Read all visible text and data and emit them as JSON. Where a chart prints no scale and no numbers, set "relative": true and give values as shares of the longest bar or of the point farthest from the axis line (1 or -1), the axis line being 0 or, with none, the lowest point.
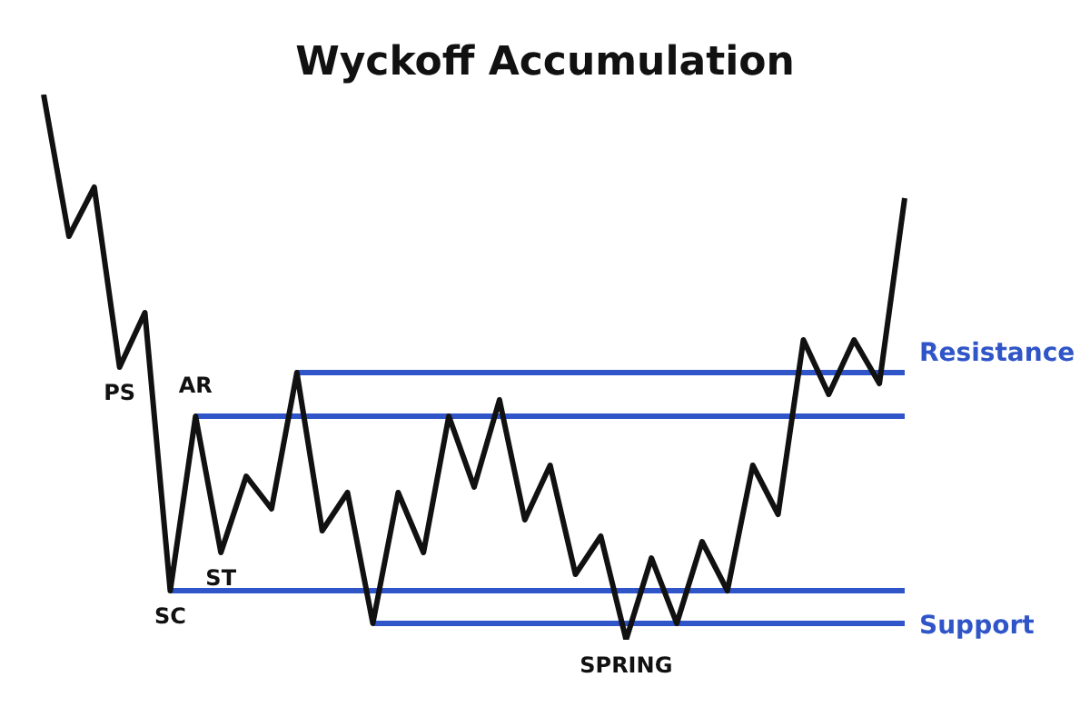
{
  "chart_data": {
    "type": "line",
    "title": "Wyckoff Accumulation",
    "relative": true,
    "legend": false,
    "marker": "none",
    "line_style": "solid",
    "categories": [
      null,
      null,
      null,
      null,
      null,
      null,
      null,
      null,
      null,
      null,
      null,
      null,
      null,
      null,
      null,
      null,
      null,
      null,
      null,
      null,
      null,
      null,
      null,
      null,
      null,
      null,
      null,
      null,
      null,
      null,
      null,
      null,
      null,
      null,
      null
    ],
    "series": [
      {
        "color": "#111111",
        "values": [
          1,
          0.74,
          0.83,
          0.5,
          0.6,
          0.09,
          0.41,
          0.16,
          0.3,
          0.24,
          0.49,
          0.2,
          0.27,
          0.03,
          0.27,
          0.16,
          0.41,
          0.28,
          0.44,
          0.22,
          0.32,
          0.12,
          0.19,
          0,
          0.15,
          0.03,
          0.18,
          0.09,
          0.32,
          0.23,
          0.55,
          0.45,
          0.55,
          0.47,
          0.81
        ]
      },
      {
        "name": "Resistance",
        "color": "#2f55c8",
        "values": [
          null,
          null,
          null,
          null,
          null,
          null,
          null,
          null,
          null,
          null,
          0.49,
          0.49,
          0.49,
          0.49,
          0.49,
          0.49,
          0.49,
          0.49,
          0.49,
          0.49,
          0.49,
          0.49,
          0.49,
          0.49,
          0.49,
          0.49,
          0.49,
          0.49,
          0.49,
          0.49,
          0.49,
          0.49,
          0.49,
          0.49,
          0.49
        ]
      },
      {
        "color": "#2f55c8",
        "values": [
          null,
          null,
          null,
          null,
          null,
          null,
          0.41,
          0.41,
          0.41,
          0.41,
          0.41,
          0.41,
          0.41,
          0.41,
          0.41,
          0.41,
          0.41,
          0.41,
          0.41,
          0.41,
          0.41,
          0.41,
          0.41,
          0.41,
          0.41,
          0.41,
          0.41,
          0.41,
          0.41,
          0.41,
          0.41,
          0.41,
          0.41,
          0.41,
          0.41
        ]
      },
      {
        "color": "#2f55c8",
        "values": [
          null,
          null,
          null,
          null,
          null,
          0.09,
          0.09,
          0.09,
          0.09,
          0.09,
          0.09,
          0.09,
          0.09,
          0.09,
          0.09,
          0.09,
          0.09,
          0.09,
          0.09,
          0.09,
          0.09,
          0.09,
          0.09,
          0.09,
          0.09,
          0.09,
          0.09,
          0.09,
          0.09,
          0.09,
          0.09,
          0.09,
          0.09,
          0.09,
          0.09
        ]
      },
      {
        "name": "Support",
        "color": "#2f55c8",
        "values": [
          null,
          null,
          null,
          null,
          null,
          null,
          null,
          null,
          null,
          null,
          null,
          null,
          null,
          0.03,
          0.03,
          0.03,
          0.03,
          0.03,
          0.03,
          0.03,
          0.03,
          0.03,
          0.03,
          0.03,
          0.03,
          0.03,
          0.03,
          0.03,
          0.03,
          0.03,
          0.03,
          0.03,
          0.03,
          0.03,
          0.03
        ]
      }
    ],
    "annotations": [
      {
        "text": "PS",
        "y": 0.5
      },
      {
        "text": "AR",
        "y": 0.41
      },
      {
        "text": "ST",
        "y": 0.16
      },
      {
        "text": "SC",
        "y": 0.09
      },
      {
        "text": "SPRING",
        "y": 0
      }
    ]
  }
}
